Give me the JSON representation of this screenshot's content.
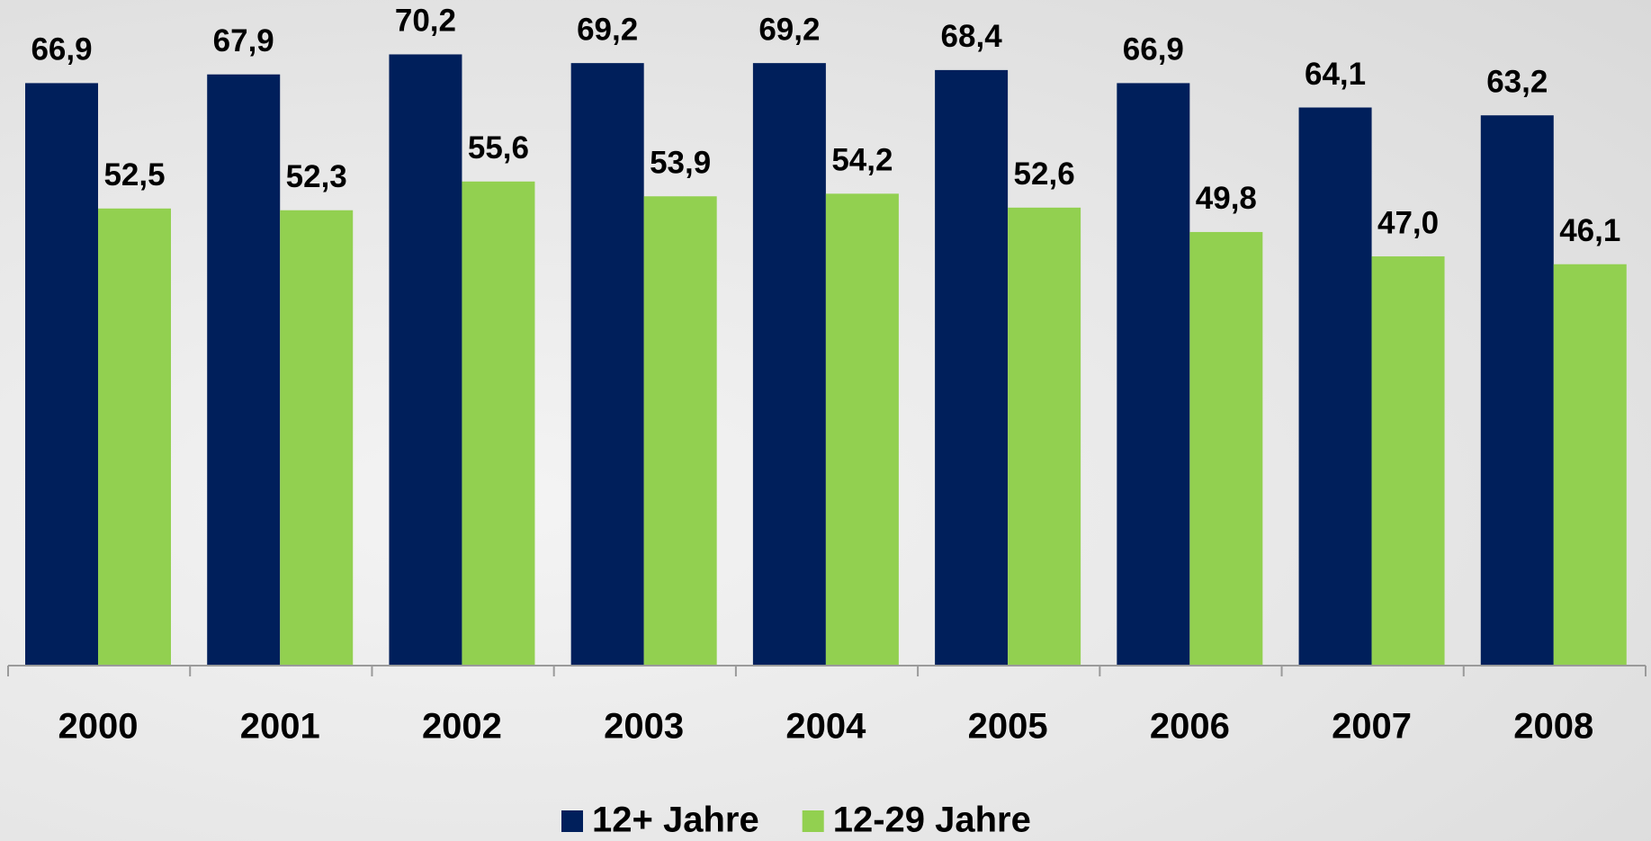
{
  "chart_data": {
    "type": "bar",
    "categories": [
      "2000",
      "2001",
      "2002",
      "2003",
      "2004",
      "2005",
      "2006",
      "2007",
      "2008"
    ],
    "series": [
      {
        "name": "12+ Jahre",
        "color": "#001f5b",
        "values": [
          66.9,
          67.9,
          70.2,
          69.2,
          69.2,
          68.4,
          66.9,
          64.1,
          63.2
        ],
        "value_labels": [
          "66,9",
          "67,9",
          "70,2",
          "69,2",
          "69,2",
          "68,4",
          "66,9",
          "64,1",
          "63,2"
        ]
      },
      {
        "name": "12-29 Jahre",
        "color": "#92d050",
        "values": [
          52.5,
          52.3,
          55.6,
          53.9,
          54.2,
          52.6,
          49.8,
          47.0,
          46.1
        ],
        "value_labels": [
          "52,5",
          "52,3",
          "55,6",
          "53,9",
          "54,2",
          "52,6",
          "49,8",
          "47,0",
          "46,1"
        ]
      }
    ],
    "ylim": [
      0,
      75
    ],
    "legend": "bottom"
  }
}
